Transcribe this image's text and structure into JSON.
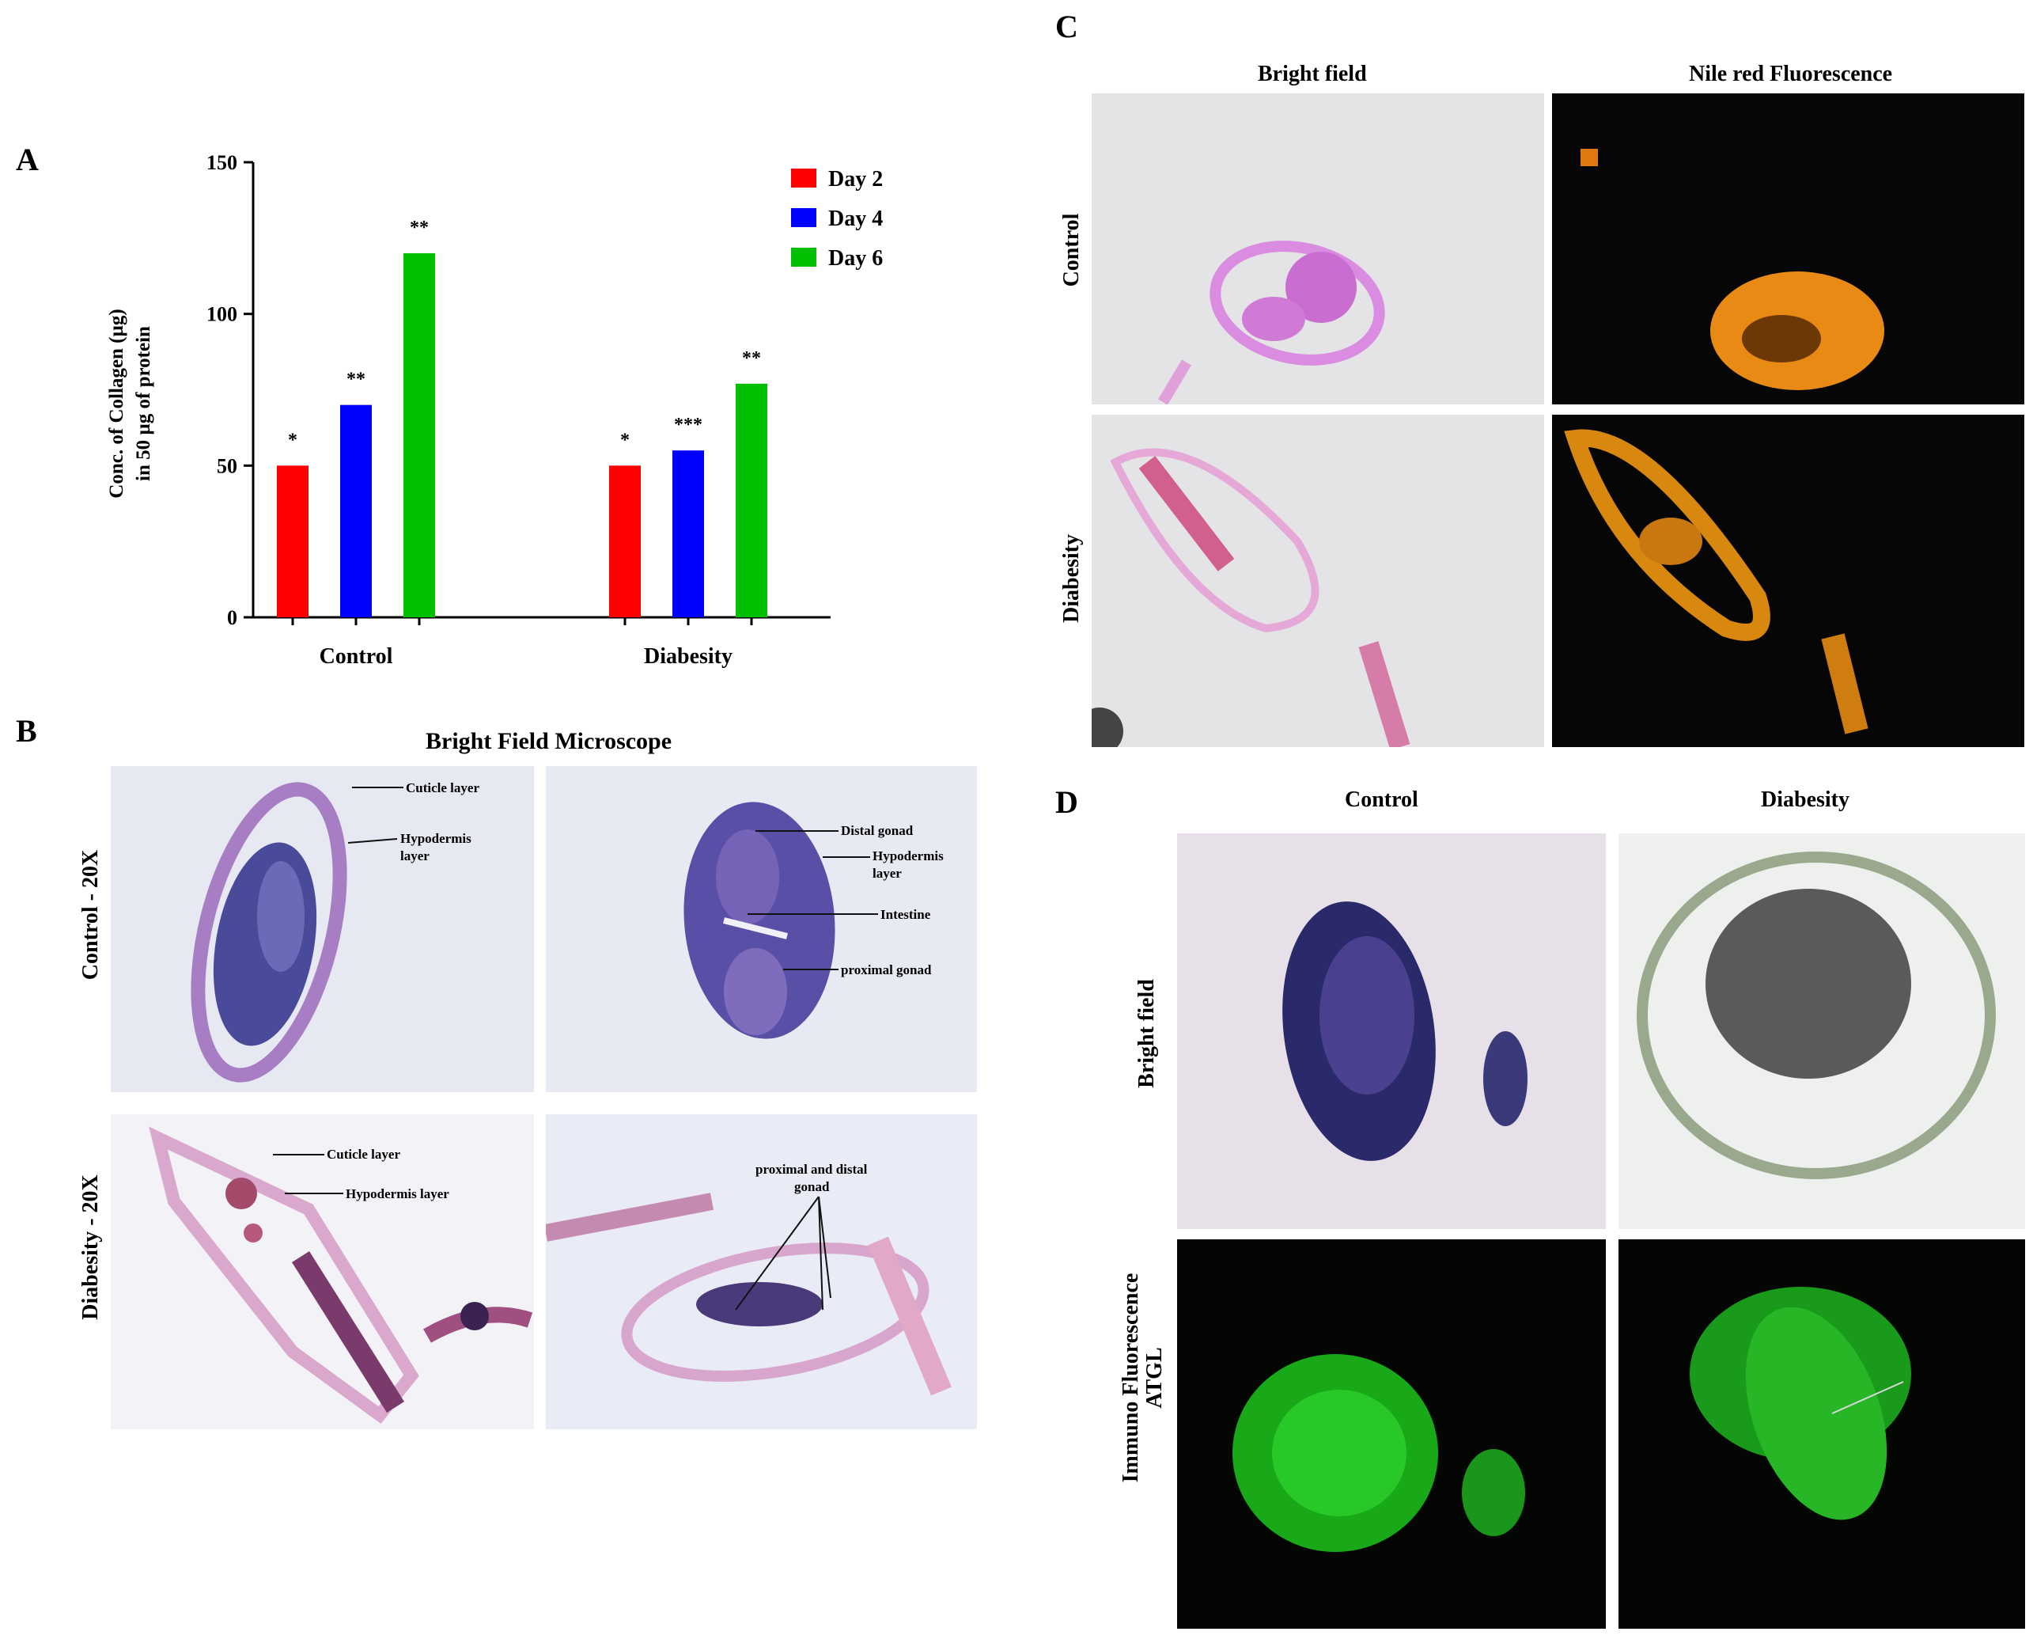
{
  "panels": {
    "a": {
      "letter": "A"
    },
    "b": {
      "letter": "B",
      "title": "Bright Field Microscope",
      "row_labels": [
        "Control - 20X",
        "Diabesity - 20X"
      ],
      "annotations": {
        "control_left": [
          "Cuticle layer",
          "Hypodermis",
          "layer"
        ],
        "control_right": [
          "Distal gonad",
          "Hypodermis",
          "layer",
          "Intestine",
          "proximal gonad"
        ],
        "diab_left": [
          "Cuticle layer",
          "Hypodermis layer"
        ],
        "diab_right": [
          "proximal and distal",
          "gonad"
        ]
      }
    },
    "c": {
      "letter": "C",
      "col_labels": [
        "Bright field",
        "Nile red Fluorescence"
      ],
      "row_labels": [
        "Control",
        "Diabesity"
      ]
    },
    "d": {
      "letter": "D",
      "col_labels": [
        "Control",
        "Diabesity"
      ],
      "row_labels": [
        "Bright field",
        "Immuno Fluorescence",
        "ATGL"
      ]
    }
  },
  "chart_data": {
    "type": "bar",
    "categories": [
      "Control",
      "Diabesity"
    ],
    "series": [
      {
        "name": "Day 2",
        "values": [
          50,
          50
        ],
        "significance": [
          "*",
          "*"
        ],
        "color": "#ff0000"
      },
      {
        "name": "Day 4",
        "values": [
          70,
          55
        ],
        "significance": [
          "**",
          "***"
        ],
        "color": "#0000ff"
      },
      {
        "name": "Day 6",
        "values": [
          120,
          77
        ],
        "significance": [
          "**",
          "**"
        ],
        "color": "#00c000"
      }
    ],
    "ylabel_lines": [
      "Conc. of Collagen (µg)",
      "in 50 µg of protein"
    ],
    "yticks": [
      0,
      50,
      100,
      150
    ],
    "ylim": [
      0,
      150
    ],
    "legend_position": "top-right"
  }
}
